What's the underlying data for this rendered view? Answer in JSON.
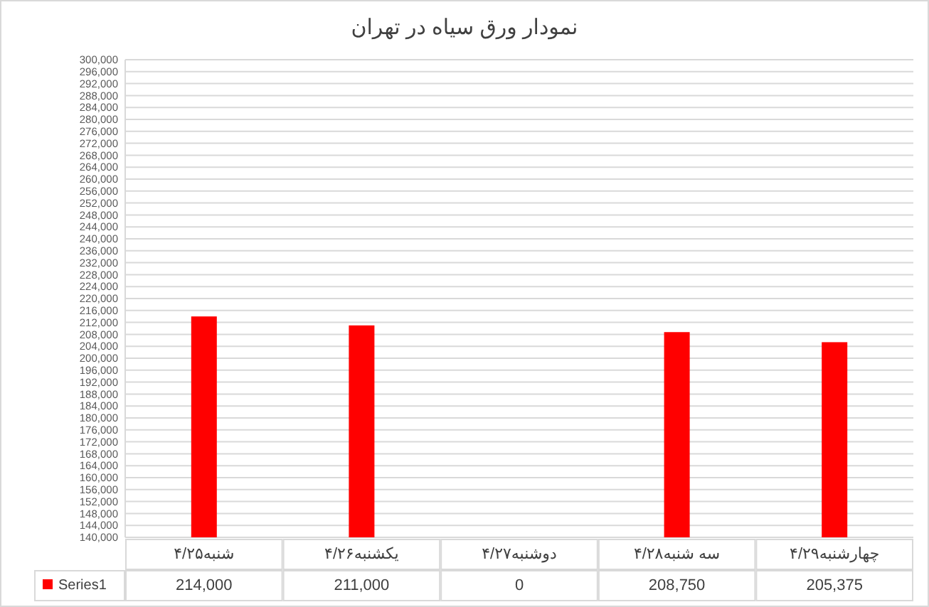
{
  "chart_data": {
    "type": "bar",
    "title": "نمودار ورق سیاه در تهران",
    "categories": [
      "شنبه۴/۲۵",
      "یکشنبه۴/۲۶",
      "دوشنبه۴/۲۷",
      "سه شنبه۴/۲۸",
      "چهارشنبه۴/۲۹"
    ],
    "series": [
      {
        "name": "Series1",
        "color": "#ff0000",
        "values": [
          214000,
          211000,
          null,
          208750,
          205375
        ],
        "value_labels": [
          "214,000",
          "211,000",
          "0",
          "208,750",
          "205,375"
        ]
      }
    ],
    "ylim": [
      140000,
      300000
    ],
    "yticks": [
      {
        "value": 140000,
        "label": "140,000"
      },
      {
        "value": 144000,
        "label": "144,000"
      },
      {
        "value": 148000,
        "label": "148,000"
      },
      {
        "value": 152000,
        "label": "152,000"
      },
      {
        "value": 156000,
        "label": "156,000"
      },
      {
        "value": 160000,
        "label": "160,000"
      },
      {
        "value": 164000,
        "label": "164,000"
      },
      {
        "value": 168000,
        "label": "168,000"
      },
      {
        "value": 172000,
        "label": "172,000"
      },
      {
        "value": 176000,
        "label": "176,000"
      },
      {
        "value": 180000,
        "label": "180,000"
      },
      {
        "value": 184000,
        "label": "184,000"
      },
      {
        "value": 188000,
        "label": "188,000"
      },
      {
        "value": 192000,
        "label": "192,000"
      },
      {
        "value": 196000,
        "label": "196,000"
      },
      {
        "value": 200000,
        "label": "200,000"
      },
      {
        "value": 204000,
        "label": "204,000"
      },
      {
        "value": 208000,
        "label": "208,000"
      },
      {
        "value": 212000,
        "label": "212,000"
      },
      {
        "value": 216000,
        "label": "216,000"
      },
      {
        "value": 220000,
        "label": "220,000"
      },
      {
        "value": 224000,
        "label": "224,000"
      },
      {
        "value": 228000,
        "label": "228,000"
      },
      {
        "value": 232000,
        "label": "232,000"
      },
      {
        "value": 236000,
        "label": "236,000"
      },
      {
        "value": 240000,
        "label": "240,000"
      },
      {
        "value": 244000,
        "label": "244,000"
      },
      {
        "value": 248000,
        "label": "248,000"
      },
      {
        "value": 252000,
        "label": "252,000"
      },
      {
        "value": 256000,
        "label": "256,000"
      },
      {
        "value": 260000,
        "label": "260,000"
      },
      {
        "value": 264000,
        "label": "264,000"
      },
      {
        "value": 268000,
        "label": "268,000"
      },
      {
        "value": 272000,
        "label": "272,000"
      },
      {
        "value": 276000,
        "label": "276,000"
      },
      {
        "value": 280000,
        "label": "280,000"
      },
      {
        "value": 284000,
        "label": "284,000"
      },
      {
        "value": 288000,
        "label": "288,000"
      },
      {
        "value": 292000,
        "label": "292,000"
      },
      {
        "value": 296000,
        "label": "296,000"
      },
      {
        "value": 300000,
        "label": "300,000"
      }
    ],
    "grid": "y",
    "legend": "bottom"
  }
}
